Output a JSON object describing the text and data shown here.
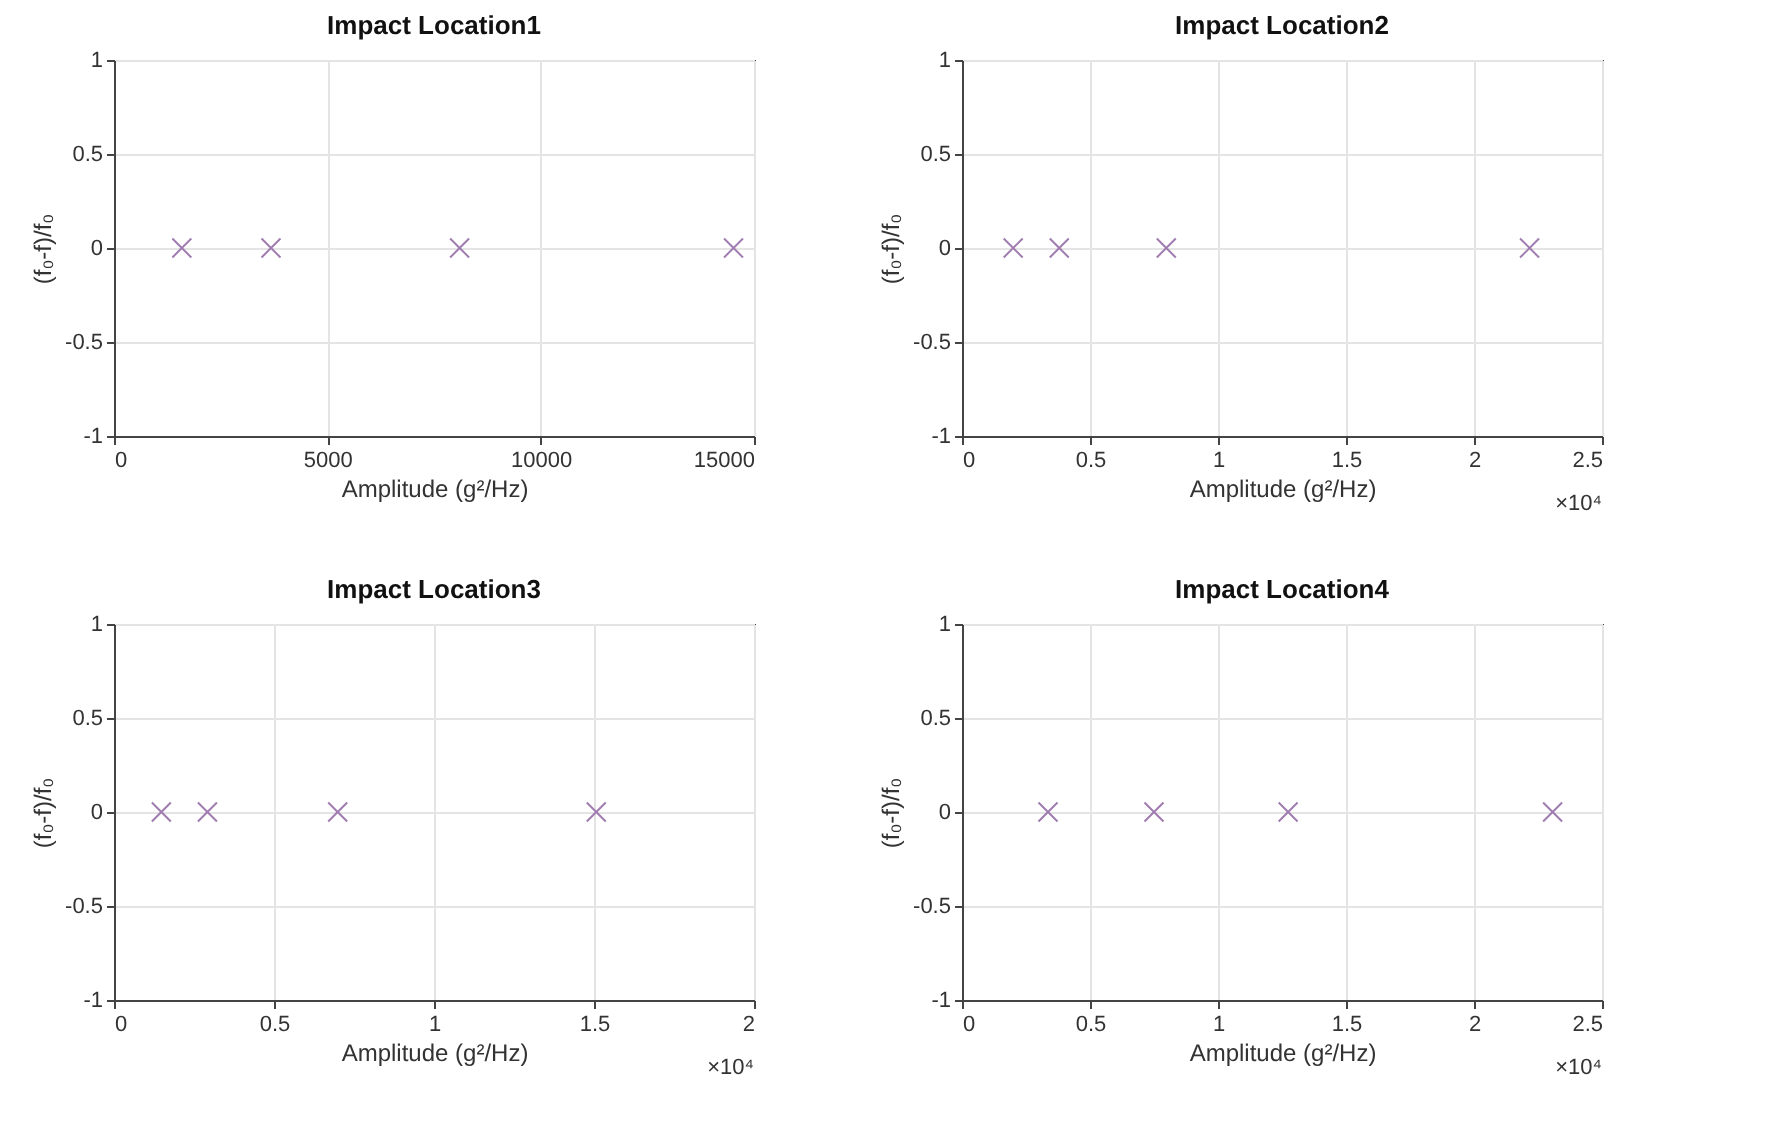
{
  "chart_data": [
    {
      "type": "scatter",
      "title": "Impact Location1",
      "xlabel": "Amplitude (g²/Hz)",
      "ylabel": "(f₀-f)/f₀",
      "x": [
        1590,
        3680,
        8100,
        14520
      ],
      "series": [
        {
          "color": "#a07cb0",
          "values": [
            0,
            0,
            0,
            0
          ]
        }
      ],
      "xlim": [
        0,
        15000
      ],
      "xticks": [
        0,
        5000,
        10000,
        15000
      ],
      "ylim": [
        -1,
        1
      ],
      "yticks": [
        -1,
        -0.5,
        0,
        0.5,
        1
      ],
      "grid": true,
      "marker": "cross"
    },
    {
      "type": "scatter",
      "title": "Impact Location2",
      "xlabel": "Amplitude (g²/Hz)",
      "ylabel": "(f₀-f)/f₀",
      "x": [
        0.2,
        0.38,
        0.798,
        2.217
      ],
      "series": [
        {
          "color": "#a07cb0",
          "values": [
            0,
            0,
            0,
            0
          ]
        }
      ],
      "xlim": [
        0,
        2.5
      ],
      "xticks": [
        0,
        0.5,
        1,
        1.5,
        2,
        2.5
      ],
      "ylim": [
        -1,
        1
      ],
      "yticks": [
        -1,
        -0.5,
        0,
        0.5,
        1
      ],
      "grid": true,
      "marker": "cross",
      "annotations": [
        "×10⁴"
      ]
    },
    {
      "type": "scatter",
      "title": "Impact Location3",
      "xlabel": "Amplitude (g²/Hz)",
      "ylabel": "(f₀-f)/f₀",
      "x": [
        0.148,
        0.292,
        0.699,
        1.507
      ],
      "series": [
        {
          "color": "#a07cb0",
          "values": [
            0,
            0,
            0,
            0
          ]
        }
      ],
      "xlim": [
        0,
        2
      ],
      "xticks": [
        0,
        0.5,
        1,
        1.5,
        2
      ],
      "ylim": [
        -1,
        1
      ],
      "yticks": [
        -1,
        -0.5,
        0,
        0.5,
        1
      ],
      "grid": true,
      "marker": "cross",
      "annotations": [
        "×10⁴"
      ]
    },
    {
      "type": "scatter",
      "title": "Impact Location4",
      "xlabel": "Amplitude (g²/Hz)",
      "ylabel": "(f₀-f)/f₀",
      "x": [
        0.336,
        0.75,
        1.274,
        2.307
      ],
      "series": [
        {
          "color": "#a07cb0",
          "values": [
            0,
            0,
            0,
            0
          ]
        }
      ],
      "xlim": [
        0,
        2.5
      ],
      "xticks": [
        0,
        0.5,
        1,
        1.5,
        2,
        2.5
      ],
      "ylim": [
        -1,
        1
      ],
      "yticks": [
        -1,
        -0.5,
        0,
        0.5,
        1
      ],
      "grid": true,
      "marker": "cross",
      "annotations": [
        "×10⁴"
      ]
    }
  ]
}
